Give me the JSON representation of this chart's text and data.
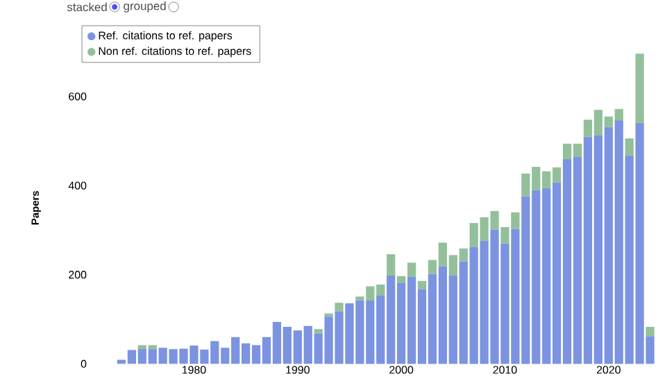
{
  "chart_data": {
    "type": "bar",
    "stacked": true,
    "ylabel": "Papers",
    "legend": "top left",
    "annotations": [
      "stacked",
      "grouped"
    ],
    "x": [
      1973,
      1974,
      1975,
      1976,
      1977,
      1978,
      1979,
      1980,
      1981,
      1982,
      1983,
      1984,
      1985,
      1986,
      1987,
      1988,
      1989,
      1990,
      1991,
      1992,
      1993,
      1994,
      1995,
      1996,
      1997,
      1998,
      1999,
      2000,
      2001,
      2002,
      2003,
      2004,
      2005,
      2006,
      2007,
      2008,
      2009,
      2010,
      2011,
      2012,
      2013,
      2014,
      2015,
      2016,
      2017,
      2018,
      2019,
      2020,
      2021,
      2022,
      2023,
      2024
    ],
    "series": [
      {
        "name": "Ref. citations to ref. papers",
        "color": "#7b93e0",
        "values": [
          9,
          31,
          33,
          33,
          36,
          33,
          34,
          41,
          32,
          51,
          36,
          60,
          46,
          42,
          60,
          94,
          83,
          75,
          85,
          68,
          106,
          118,
          136,
          143,
          142,
          153,
          198,
          182,
          195,
          167,
          202,
          219,
          198,
          230,
          262,
          276,
          301,
          270,
          303,
          376,
          390,
          394,
          407,
          459,
          465,
          509,
          513,
          531,
          546,
          467,
          540,
          62
        ]
      },
      {
        "name": "Non ref. citations to ref. papers",
        "color": "#93c09a",
        "values": [
          0,
          0,
          9,
          9,
          0,
          0,
          0,
          0,
          0,
          0,
          0,
          0,
          0,
          0,
          0,
          0,
          0,
          0,
          0,
          10,
          7,
          19,
          0,
          8,
          32,
          25,
          48,
          15,
          32,
          19,
          31,
          53,
          46,
          29,
          54,
          53,
          42,
          37,
          37,
          51,
          52,
          38,
          34,
          35,
          29,
          39,
          57,
          24,
          26,
          39,
          156,
          21
        ]
      }
    ],
    "xlim": [
      1972,
      2024.5
    ],
    "ylim": [
      0,
      700
    ],
    "xticks": [
      1980,
      1990,
      2000,
      2010,
      2020
    ],
    "yticks": [
      0,
      200,
      400,
      600
    ]
  }
}
